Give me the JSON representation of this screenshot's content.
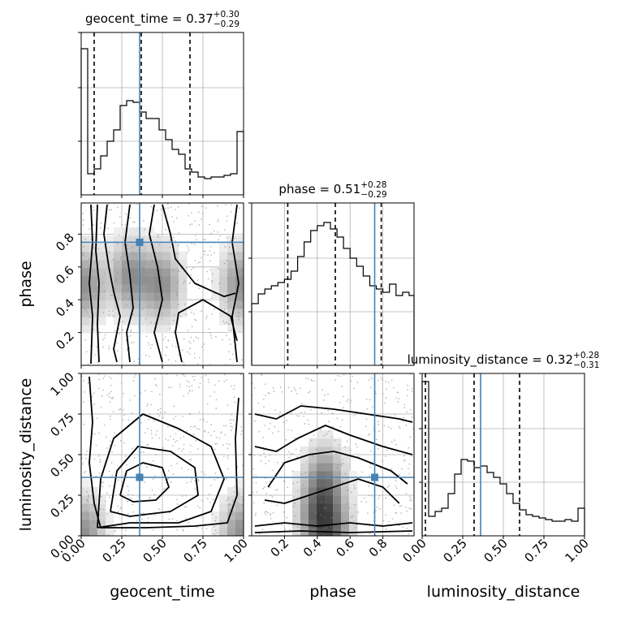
{
  "chart_data": [
    {
      "type": "histogram",
      "panel": "geocent_time",
      "title": {
        "name": "geocent_time",
        "median": "0.37",
        "plus": "+0.30",
        "minus": "−0.29"
      },
      "xlim": [
        0,
        1
      ],
      "bin_edges": [
        0,
        0.04,
        0.08,
        0.12,
        0.16,
        0.2,
        0.24,
        0.28,
        0.32,
        0.36,
        0.4,
        0.44,
        0.48,
        0.52,
        0.56,
        0.6,
        0.64,
        0.68,
        0.72,
        0.76,
        0.8,
        0.84,
        0.88,
        0.92,
        0.96,
        1.0
      ],
      "counts": [
        0.9,
        0.13,
        0.16,
        0.24,
        0.33,
        0.4,
        0.55,
        0.58,
        0.57,
        0.51,
        0.47,
        0.47,
        0.4,
        0.34,
        0.28,
        0.25,
        0.16,
        0.14,
        0.11,
        0.1,
        0.11,
        0.11,
        0.12,
        0.13,
        0.39
      ],
      "quantile_lines": [
        0.08,
        0.37,
        0.67
      ],
      "truth": 0.36,
      "grid": true
    },
    {
      "type": "histogram",
      "panel": "phase",
      "title": {
        "name": "phase",
        "median": "0.51",
        "plus": "+0.28",
        "minus": "−0.29"
      },
      "xlim": [
        0,
        0.99
      ],
      "bin_edges": [
        0,
        0.04,
        0.08,
        0.12,
        0.16,
        0.2,
        0.24,
        0.28,
        0.32,
        0.36,
        0.4,
        0.44,
        0.48,
        0.52,
        0.56,
        0.6,
        0.64,
        0.68,
        0.72,
        0.76,
        0.8,
        0.84,
        0.88,
        0.92,
        0.96,
        0.99
      ],
      "counts": [
        0.38,
        0.44,
        0.47,
        0.49,
        0.51,
        0.53,
        0.58,
        0.67,
        0.76,
        0.83,
        0.86,
        0.88,
        0.84,
        0.79,
        0.72,
        0.66,
        0.61,
        0.55,
        0.49,
        0.47,
        0.45,
        0.5,
        0.43,
        0.45,
        0.43
      ],
      "quantile_lines": [
        0.22,
        0.51,
        0.79
      ],
      "truth": 0.75,
      "grid": true
    },
    {
      "type": "histogram",
      "panel": "luminosity_distance",
      "title": {
        "name": "luminosity_distance",
        "median": "0.32",
        "plus": "+0.28",
        "minus": "−0.31"
      },
      "xlim": [
        0,
        1
      ],
      "bin_edges": [
        0,
        0.04,
        0.08,
        0.12,
        0.16,
        0.2,
        0.24,
        0.28,
        0.32,
        0.36,
        0.4,
        0.44,
        0.48,
        0.52,
        0.56,
        0.6,
        0.64,
        0.68,
        0.72,
        0.76,
        0.8,
        0.84,
        0.88,
        0.92,
        0.96,
        1.0
      ],
      "counts": [
        0.95,
        0.12,
        0.15,
        0.17,
        0.26,
        0.38,
        0.47,
        0.46,
        0.42,
        0.43,
        0.39,
        0.36,
        0.32,
        0.26,
        0.2,
        0.16,
        0.13,
        0.12,
        0.11,
        0.1,
        0.09,
        0.09,
        0.1,
        0.09,
        0.17
      ],
      "quantile_lines": [
        0.02,
        0.32,
        0.6
      ],
      "truth": 0.36,
      "grid": true
    },
    {
      "type": "heatmap",
      "panel": "phase vs geocent_time",
      "x": "geocent_time",
      "y": "phase",
      "xlim": [
        0,
        1
      ],
      "ylim": [
        0,
        0.99
      ],
      "truth": [
        0.36,
        0.75
      ],
      "density_peaks": [
        [
          0.02,
          0.5
        ],
        [
          0.98,
          0.5
        ],
        [
          0.3,
          0.55
        ],
        [
          0.5,
          0.5
        ]
      ],
      "contours": [
        [
          [
            0.06,
            0.01
          ],
          [
            0.07,
            0.3
          ],
          [
            0.05,
            0.5
          ],
          [
            0.07,
            0.75
          ],
          [
            0.06,
            0.98
          ]
        ],
        [
          [
            0.1,
            0.98
          ],
          [
            0.09,
            0.7
          ],
          [
            0.11,
            0.5
          ],
          [
            0.1,
            0.25
          ],
          [
            0.11,
            0.02
          ]
        ],
        [
          [
            0.16,
            0.98
          ],
          [
            0.14,
            0.8
          ],
          [
            0.17,
            0.6
          ],
          [
            0.2,
            0.45
          ],
          [
            0.24,
            0.3
          ],
          [
            0.2,
            0.1
          ],
          [
            0.22,
            0.02
          ]
        ],
        [
          [
            0.3,
            0.02
          ],
          [
            0.28,
            0.2
          ],
          [
            0.32,
            0.35
          ],
          [
            0.3,
            0.55
          ],
          [
            0.27,
            0.75
          ],
          [
            0.3,
            0.98
          ]
        ],
        [
          [
            0.45,
            0.98
          ],
          [
            0.42,
            0.8
          ],
          [
            0.47,
            0.6
          ],
          [
            0.5,
            0.4
          ],
          [
            0.45,
            0.2
          ],
          [
            0.5,
            0.02
          ]
        ],
        [
          [
            0.5,
            0.98
          ],
          [
            0.55,
            0.8
          ],
          [
            0.58,
            0.65
          ],
          [
            0.7,
            0.5
          ],
          [
            0.88,
            0.42
          ],
          [
            0.95,
            0.44
          ]
        ],
        [
          [
            0.62,
            0.02
          ],
          [
            0.58,
            0.2
          ],
          [
            0.6,
            0.32
          ],
          [
            0.75,
            0.4
          ],
          [
            0.92,
            0.3
          ],
          [
            0.96,
            0.15
          ]
        ],
        [
          [
            0.96,
            0.98
          ],
          [
            0.93,
            0.75
          ],
          [
            0.97,
            0.5
          ],
          [
            0.93,
            0.3
          ],
          [
            0.96,
            0.02
          ]
        ]
      ],
      "ticks_y": [
        "0.2",
        "0.4",
        "0.6",
        "0.8"
      ],
      "ticks_y_values": [
        0.2,
        0.4,
        0.6,
        0.8
      ]
    },
    {
      "type": "heatmap",
      "panel": "luminosity_distance vs geocent_time",
      "x": "geocent_time",
      "y": "luminosity_distance",
      "xlim": [
        0,
        1
      ],
      "ylim": [
        0,
        1
      ],
      "truth": [
        0.36,
        0.36
      ],
      "density_peaks": [
        [
          0.02,
          0.02
        ],
        [
          0.98,
          0.02
        ]
      ],
      "contours": [
        [
          [
            0.05,
            0.98
          ],
          [
            0.07,
            0.7
          ],
          [
            0.05,
            0.45
          ],
          [
            0.08,
            0.2
          ],
          [
            0.12,
            0.05
          ],
          [
            0.4,
            0.05
          ],
          [
            0.7,
            0.06
          ],
          [
            0.9,
            0.08
          ],
          [
            0.96,
            0.25
          ],
          [
            0.95,
            0.6
          ],
          [
            0.97,
            0.85
          ]
        ],
        [
          [
            0.1,
            0.05
          ],
          [
            0.12,
            0.35
          ],
          [
            0.2,
            0.6
          ],
          [
            0.38,
            0.75
          ],
          [
            0.6,
            0.66
          ],
          [
            0.8,
            0.55
          ],
          [
            0.88,
            0.35
          ],
          [
            0.8,
            0.15
          ],
          [
            0.6,
            0.08
          ],
          [
            0.3,
            0.08
          ],
          [
            0.1,
            0.05
          ]
        ],
        [
          [
            0.18,
            0.15
          ],
          [
            0.22,
            0.4
          ],
          [
            0.35,
            0.55
          ],
          [
            0.55,
            0.52
          ],
          [
            0.7,
            0.42
          ],
          [
            0.72,
            0.25
          ],
          [
            0.55,
            0.15
          ],
          [
            0.3,
            0.12
          ],
          [
            0.18,
            0.15
          ]
        ],
        [
          [
            0.24,
            0.25
          ],
          [
            0.28,
            0.4
          ],
          [
            0.38,
            0.45
          ],
          [
            0.5,
            0.42
          ],
          [
            0.54,
            0.3
          ],
          [
            0.46,
            0.22
          ],
          [
            0.32,
            0.21
          ],
          [
            0.24,
            0.25
          ]
        ]
      ],
      "ticks_y": [
        "0.00",
        "0.25",
        "0.50",
        "0.75",
        "1.00"
      ],
      "ticks_y_values": [
        0,
        0.25,
        0.5,
        0.75,
        1.0
      ]
    },
    {
      "type": "heatmap",
      "panel": "luminosity_distance vs phase",
      "x": "phase",
      "y": "luminosity_distance",
      "xlim": [
        0,
        0.99
      ],
      "ylim": [
        0,
        1
      ],
      "truth": [
        0.75,
        0.36
      ],
      "density_peaks": [
        [
          0.5,
          0.02
        ],
        [
          0.45,
          0.35
        ],
        [
          0.4,
          0.1
        ]
      ],
      "contours": [
        [
          [
            0.02,
            0.75
          ],
          [
            0.15,
            0.72
          ],
          [
            0.3,
            0.8
          ],
          [
            0.5,
            0.78
          ],
          [
            0.7,
            0.75
          ],
          [
            0.9,
            0.72
          ],
          [
            0.98,
            0.7
          ]
        ],
        [
          [
            0.02,
            0.55
          ],
          [
            0.15,
            0.52
          ],
          [
            0.28,
            0.6
          ],
          [
            0.45,
            0.68
          ],
          [
            0.6,
            0.62
          ],
          [
            0.8,
            0.55
          ],
          [
            0.98,
            0.5
          ]
        ],
        [
          [
            0.1,
            0.3
          ],
          [
            0.2,
            0.45
          ],
          [
            0.35,
            0.5
          ],
          [
            0.5,
            0.52
          ],
          [
            0.65,
            0.48
          ],
          [
            0.85,
            0.4
          ],
          [
            0.95,
            0.32
          ]
        ],
        [
          [
            0.08,
            0.22
          ],
          [
            0.2,
            0.2
          ],
          [
            0.35,
            0.25
          ],
          [
            0.5,
            0.3
          ],
          [
            0.65,
            0.35
          ],
          [
            0.8,
            0.3
          ],
          [
            0.9,
            0.2
          ]
        ],
        [
          [
            0.02,
            0.06
          ],
          [
            0.2,
            0.08
          ],
          [
            0.4,
            0.06
          ],
          [
            0.6,
            0.08
          ],
          [
            0.8,
            0.06
          ],
          [
            0.98,
            0.08
          ]
        ],
        [
          [
            0.02,
            0.02
          ],
          [
            0.3,
            0.03
          ],
          [
            0.6,
            0.02
          ],
          [
            0.98,
            0.03
          ]
        ]
      ]
    }
  ],
  "axes": {
    "geocent_time_ticks": [
      "0.00",
      "0.25",
      "0.50",
      "0.75",
      "1.00"
    ],
    "geocent_time_tick_values": [
      0,
      0.25,
      0.5,
      0.75,
      1.0
    ],
    "phase_ticks": [
      "0.2",
      "0.4",
      "0.6",
      "0.8"
    ],
    "phase_tick_values": [
      0.2,
      0.4,
      0.6,
      0.8
    ],
    "luminosity_distance_ticks": [
      "0.00",
      "0.25",
      "0.50",
      "0.75",
      "1.00"
    ],
    "luminosity_distance_tick_values": [
      0,
      0.25,
      0.5,
      0.75,
      1.0
    ],
    "xlabels": [
      "geocent_time",
      "phase",
      "luminosity_distance"
    ],
    "ylabels": [
      "phase",
      "luminosity_distance"
    ]
  },
  "colors": {
    "truth": "#4682b4",
    "hist": "#000000",
    "grid": "#b0b0b0",
    "scatter": "#888888"
  }
}
